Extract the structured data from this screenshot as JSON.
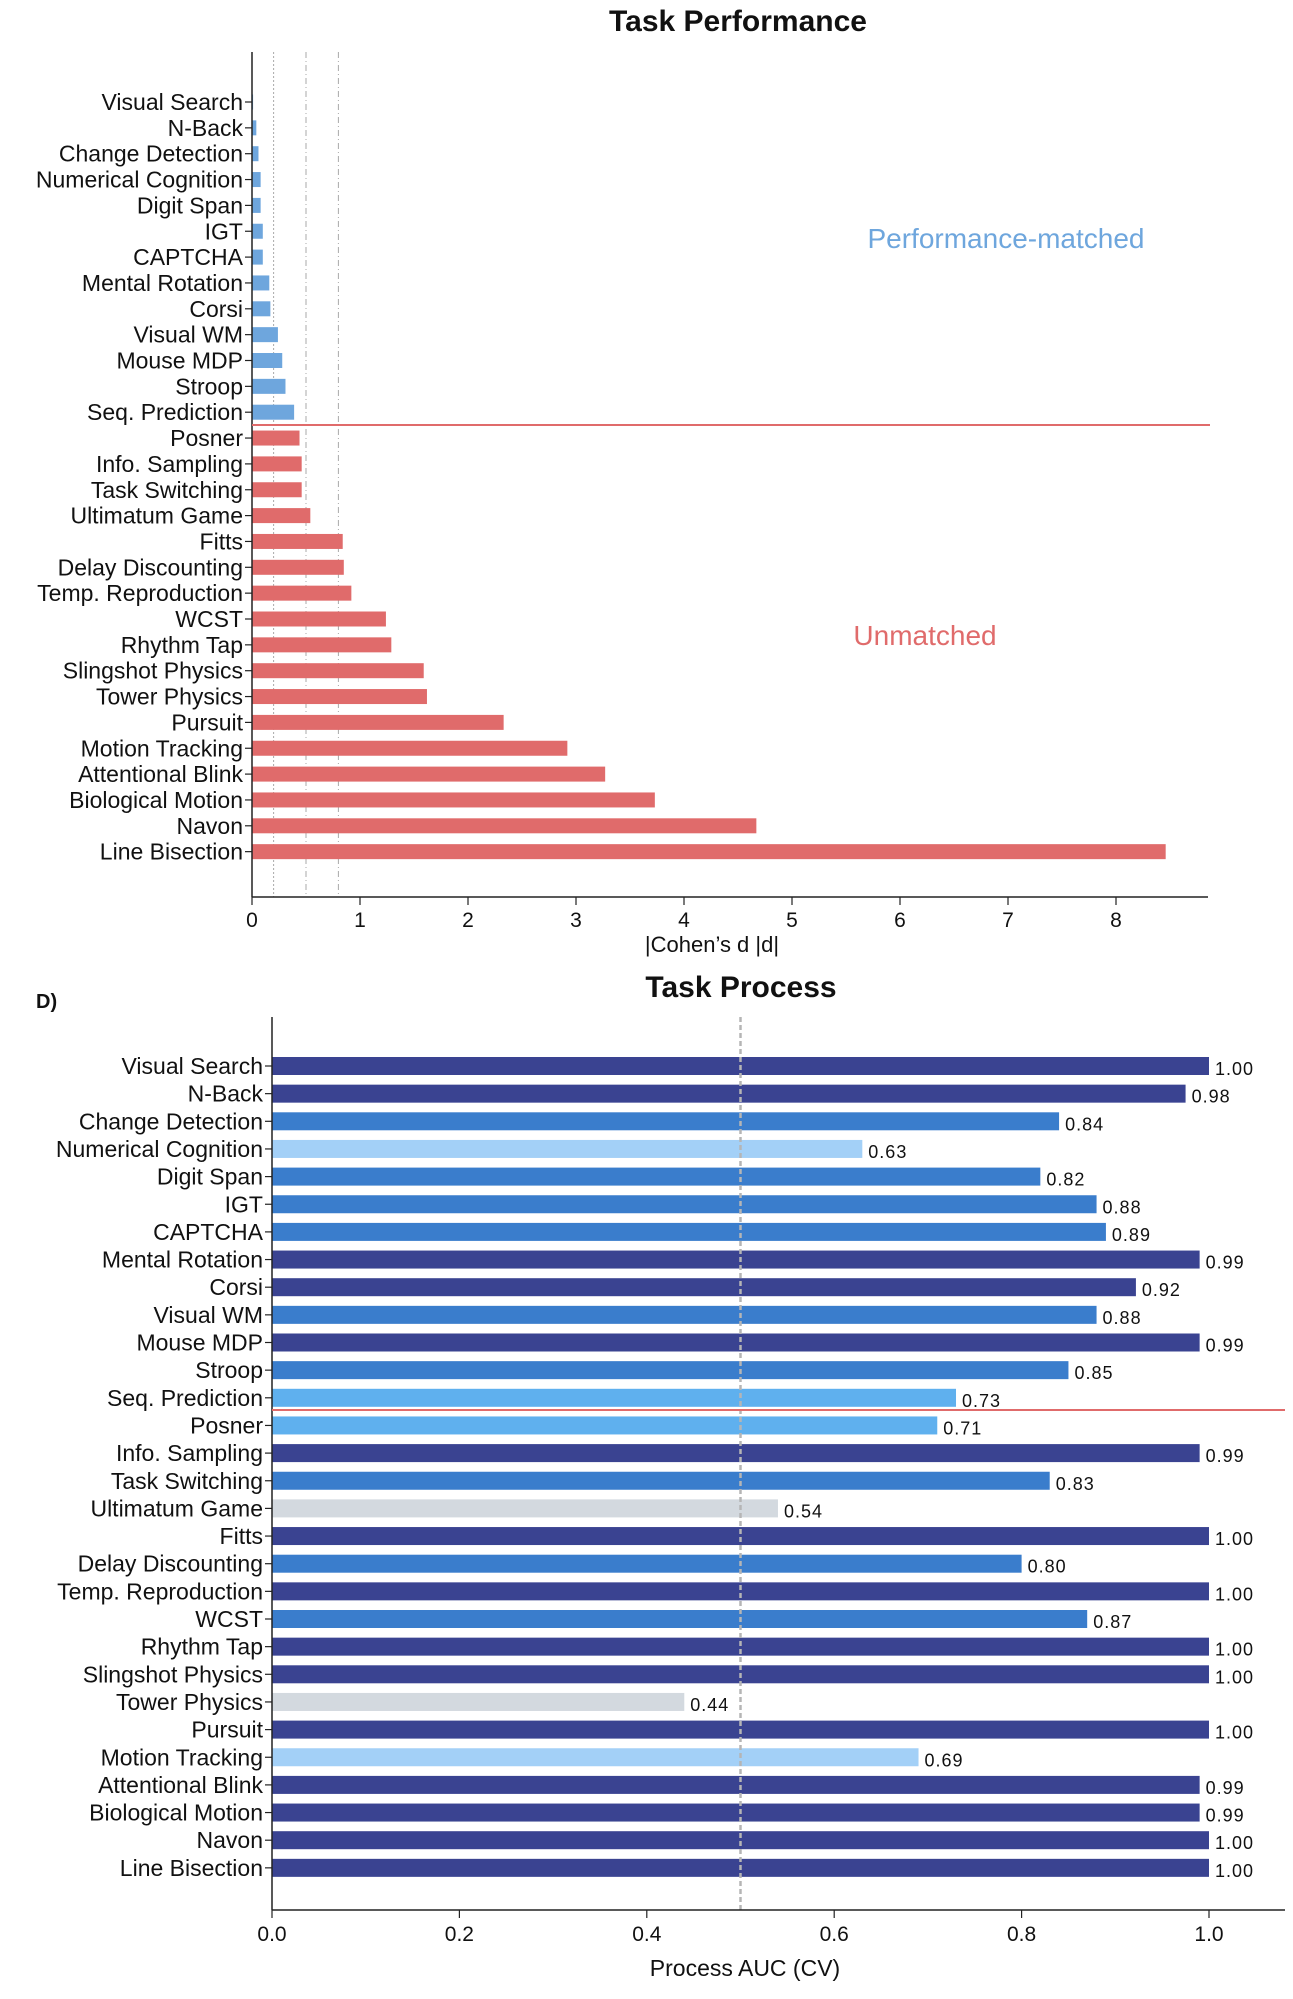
{
  "colors": {
    "matched": "#6ea6dd",
    "unmatched": "#e06b6b",
    "divider": "#e06b6b",
    "axis": "#222222",
    "ref_line": "#aaaaaa",
    "auc_dark": "#3a4391",
    "auc_mid": "#3a7dcc",
    "auc_light": "#5fb0ee",
    "auc_pale": "#a3d0f7",
    "auc_grey": "#d3d9df"
  },
  "chart_data": [
    {
      "type": "bar",
      "orientation": "horizontal",
      "title": "Task Performance",
      "xlabel": "|Cohen’s d |d|",
      "xlim": [
        0,
        8.9
      ],
      "xticks": [
        0,
        1,
        2,
        3,
        4,
        5,
        6,
        7,
        8
      ],
      "reference_lines": [
        0.2,
        0.5,
        0.8
      ],
      "categories": [
        "Visual Search",
        "N-Back",
        "Change Detection",
        "Numerical Cognition",
        "Digit Span",
        "IGT",
        "CAPTCHA",
        "Mental Rotation",
        "Corsi",
        "Visual WM",
        "Mouse MDP",
        "Stroop",
        "Seq. Prediction",
        "Posner",
        "Info. Sampling",
        "Task Switching",
        "Ultimatum Game",
        "Fitts",
        "Delay Discounting",
        "Temp. Reproduction",
        "WCST",
        "Rhythm Tap",
        "Slingshot Physics",
        "Tower Physics",
        "Pursuit",
        "Motion Tracking",
        "Attentional Blink",
        "Biological Motion",
        "Navon",
        "Line Bisection"
      ],
      "values": [
        0.01,
        0.04,
        0.06,
        0.08,
        0.08,
        0.1,
        0.1,
        0.16,
        0.17,
        0.24,
        0.28,
        0.31,
        0.39,
        0.44,
        0.46,
        0.46,
        0.54,
        0.84,
        0.85,
        0.92,
        1.24,
        1.29,
        1.59,
        1.62,
        2.33,
        2.92,
        3.27,
        3.73,
        4.67,
        8.46
      ],
      "group_labels": [
        {
          "name": "Performance-matched",
          "range": [
            0,
            12
          ]
        },
        {
          "name": "Unmatched",
          "range": [
            13,
            29
          ]
        }
      ]
    },
    {
      "type": "bar",
      "orientation": "horizontal",
      "panel_label": "D)",
      "title": "Task Process",
      "xlabel": "Process AUC (CV)",
      "xlim": [
        0,
        1.08
      ],
      "xticks": [
        "0.0",
        "0.2",
        "0.4",
        "0.6",
        "0.8",
        "1.0"
      ],
      "reference_lines": [
        0.5
      ],
      "categories": [
        "Visual Search",
        "N-Back",
        "Change Detection",
        "Numerical Cognition",
        "Digit Span",
        "IGT",
        "CAPTCHA",
        "Mental Rotation",
        "Corsi",
        "Visual WM",
        "Mouse MDP",
        "Stroop",
        "Seq. Prediction",
        "Posner",
        "Info. Sampling",
        "Task Switching",
        "Ultimatum Game",
        "Fitts",
        "Delay Discounting",
        "Temp. Reproduction",
        "WCST",
        "Rhythm Tap",
        "Slingshot Physics",
        "Tower Physics",
        "Pursuit",
        "Motion Tracking",
        "Attentional Blink",
        "Biological Motion",
        "Navon",
        "Line Bisection"
      ],
      "values": [
        1.0,
        0.975,
        0.84,
        0.63,
        0.82,
        0.88,
        0.89,
        0.99,
        0.922,
        0.88,
        0.99,
        0.85,
        0.73,
        0.71,
        0.99,
        0.83,
        0.54,
        1.0,
        0.8,
        1.0,
        0.87,
        1.0,
        1.0,
        0.44,
        1.0,
        0.69,
        0.99,
        0.99,
        1.0,
        1.0
      ],
      "labels": [
        "1.00",
        "0.98",
        "0.84",
        "0.63",
        "0.82",
        "0.88",
        "0.89",
        "0.99",
        "0.92",
        "0.88",
        "0.99",
        "0.85",
        "0.73",
        "0.71",
        "0.99",
        "0.83",
        "0.54",
        "1.00",
        "0.80",
        "1.00",
        "0.87",
        "1.00",
        "1.00",
        "0.44",
        "1.00",
        "0.69",
        "0.99",
        "0.99",
        "1.00",
        "1.00"
      ]
    }
  ]
}
